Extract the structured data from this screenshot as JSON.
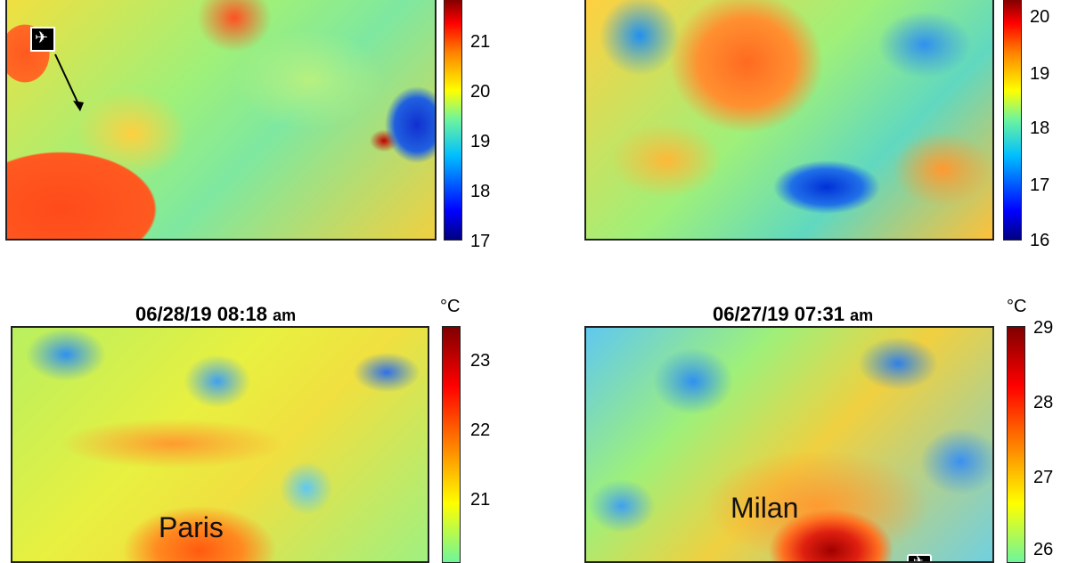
{
  "panels": [
    {
      "id": "top-left",
      "title": "",
      "ampm": "",
      "unit": "",
      "ticks": [
        "21",
        "20",
        "19",
        "18",
        "17"
      ],
      "city": "",
      "icon": "airplane-icon"
    },
    {
      "id": "top-right",
      "title": "",
      "ampm": "",
      "unit": "",
      "ticks": [
        "20",
        "19",
        "18",
        "17",
        "16"
      ],
      "city": ""
    },
    {
      "id": "bottom-left",
      "title": "06/28/19 08:18",
      "ampm": "am",
      "unit": "°C",
      "ticks": [
        "23",
        "22",
        "21"
      ],
      "city": "Paris"
    },
    {
      "id": "bottom-right",
      "title": "06/27/19 07:31",
      "ampm": "am",
      "unit": "°C",
      "ticks": [
        "29",
        "28",
        "27",
        "26"
      ],
      "city": "Milan",
      "icon": "airplane-icon"
    }
  ],
  "colormap": {
    "name": "jet",
    "low": "#00007f",
    "mid": "#6ef59c",
    "high": "#7f0000"
  }
}
